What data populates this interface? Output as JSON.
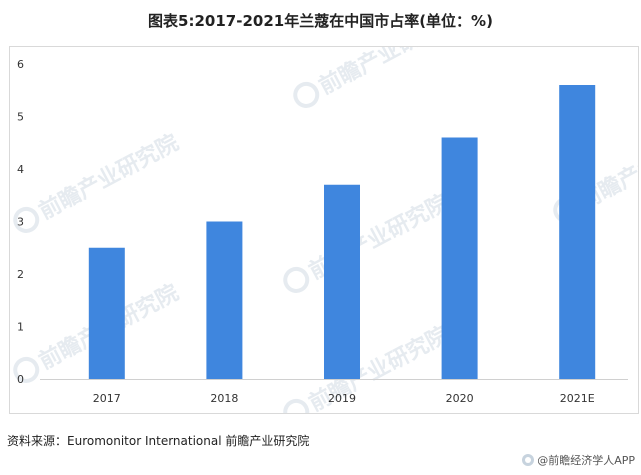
{
  "title": "图表5:2017-2021年兰蔻在中国市占率(单位：%)",
  "source": "资料来源：Euromonitor International 前瞻产业研究院",
  "brand": "@前瞻经济学人APP",
  "watermark": "前瞻产业研究院",
  "colors": {
    "bar": "#3F86DE",
    "axis_text": "#333333",
    "grid": "#E6E6E6",
    "watermark": "#D2DBE4"
  },
  "chart_data": {
    "type": "bar",
    "title": "图表5:2017-2021年兰蔻在中国市占率(单位：%)",
    "categories": [
      "2017",
      "2018",
      "2019",
      "2020",
      "2021E"
    ],
    "values": [
      2.5,
      3.0,
      3.7,
      4.6,
      5.6
    ],
    "yticks": [
      "0",
      "1",
      "2",
      "3",
      "4",
      "5",
      "6"
    ],
    "ylim": [
      0,
      6
    ],
    "xlabel": "",
    "ylabel": "",
    "grid": false,
    "legend": "none"
  }
}
